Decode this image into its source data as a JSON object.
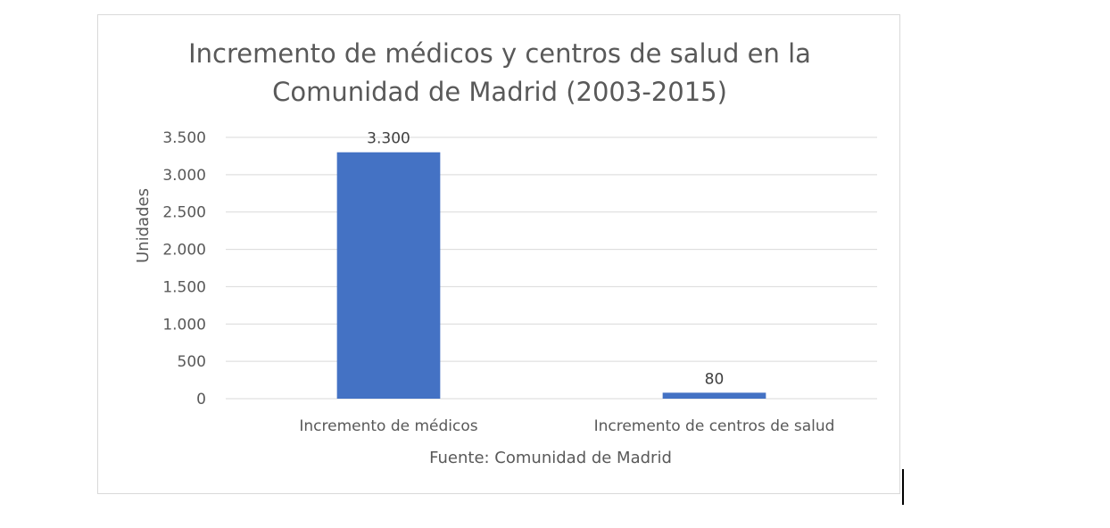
{
  "chart_data": {
    "type": "bar",
    "title_lines": [
      "Incremento de médicos y centros de salud en la",
      "Comunidad de Madrid (2003-2015)"
    ],
    "categories": [
      "Incremento de médicos",
      "Incremento de centros de salud"
    ],
    "values": [
      3300,
      80
    ],
    "data_labels": [
      "3.300",
      "80"
    ],
    "ylabel": "Unidades",
    "xlabel": "Fuente: Comunidad de Madrid",
    "ylim": [
      0,
      3500
    ],
    "yticks": [
      0,
      500,
      1000,
      1500,
      2000,
      2500,
      3000,
      3500
    ],
    "ytick_labels": [
      "0",
      "500",
      "1.000",
      "1.500",
      "2.000",
      "2.500",
      "3.000",
      "3.500"
    ],
    "grid": true,
    "legend": "none"
  },
  "colors": {
    "bar": "#4472c4",
    "grid": "#d9d9d9",
    "text": "#595959"
  }
}
